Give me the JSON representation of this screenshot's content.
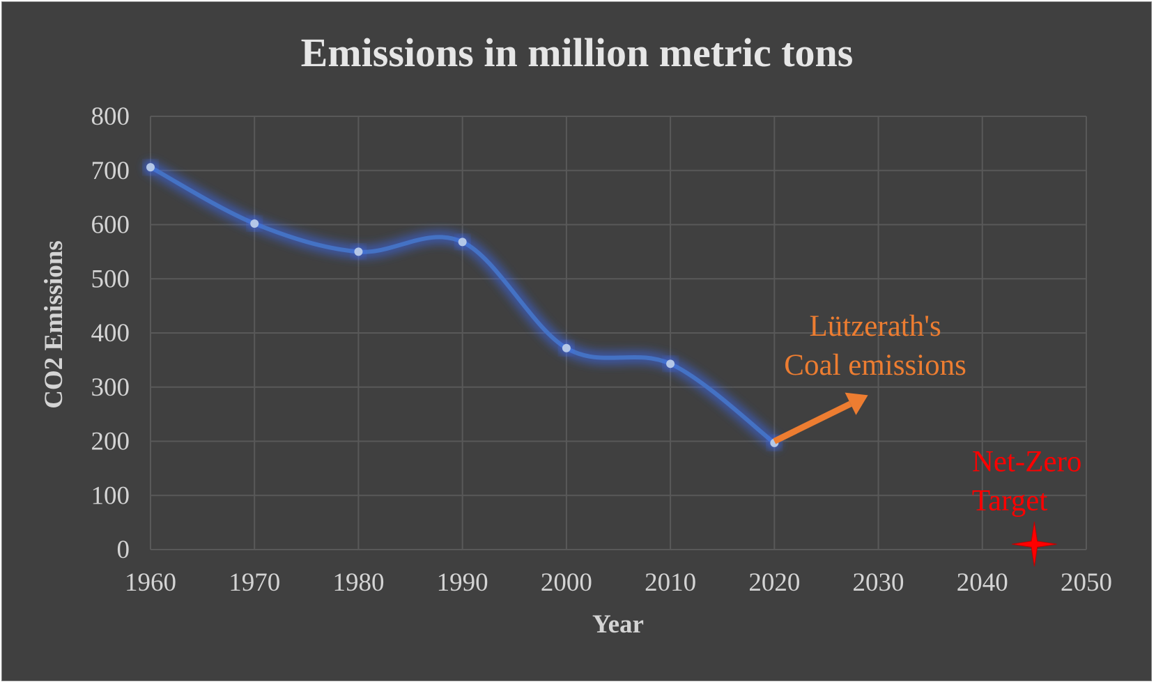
{
  "colors": {
    "background": "#404040",
    "gridline": "#595959",
    "series_line": "#4472c4",
    "series_glow": "#3b6cff",
    "marker_fill": "#b4c7e7",
    "annotation_orange": "#ed7d31",
    "annotation_red": "#ff0000",
    "text": "#d9d9d9"
  },
  "chart_data": {
    "type": "line",
    "title": "Emissions in million metric tons",
    "xlabel": "Year",
    "ylabel": "CO2 Emissions",
    "xlim": [
      1960,
      2050
    ],
    "ylim": [
      0,
      800
    ],
    "x_ticks": [
      1960,
      1970,
      1980,
      1990,
      2000,
      2010,
      2020,
      2030,
      2040,
      2050
    ],
    "y_ticks": [
      0,
      100,
      200,
      300,
      400,
      500,
      600,
      700,
      800
    ],
    "grid": true,
    "smoothed": true,
    "legend": "none",
    "series": [
      {
        "name": "CO2 Emissions",
        "points": [
          {
            "x": 1960,
            "y": 706
          },
          {
            "x": 1970,
            "y": 602
          },
          {
            "x": 1980,
            "y": 550
          },
          {
            "x": 1990,
            "y": 568
          },
          {
            "x": 2000,
            "y": 372
          },
          {
            "x": 2010,
            "y": 343
          },
          {
            "x": 2020,
            "y": 197
          }
        ]
      }
    ],
    "annotations": [
      {
        "id": "coal",
        "text_lines": [
          "Lützerath's",
          "Coal emissions"
        ],
        "color": "#ed7d31",
        "arrow_from": {
          "x": 2020,
          "y": 200
        },
        "arrow_to": {
          "x": 2029,
          "y": 285
        },
        "text_anchor_point": {
          "x": 2023,
          "y": 395
        }
      },
      {
        "id": "netzero",
        "text_lines": [
          "Net-Zero",
          "Target"
        ],
        "color": "#ff0000",
        "marker": "star",
        "marker_point": {
          "x": 2045,
          "y": 10
        },
        "text_anchor_point": {
          "x": 2039,
          "y": 145
        }
      }
    ]
  }
}
